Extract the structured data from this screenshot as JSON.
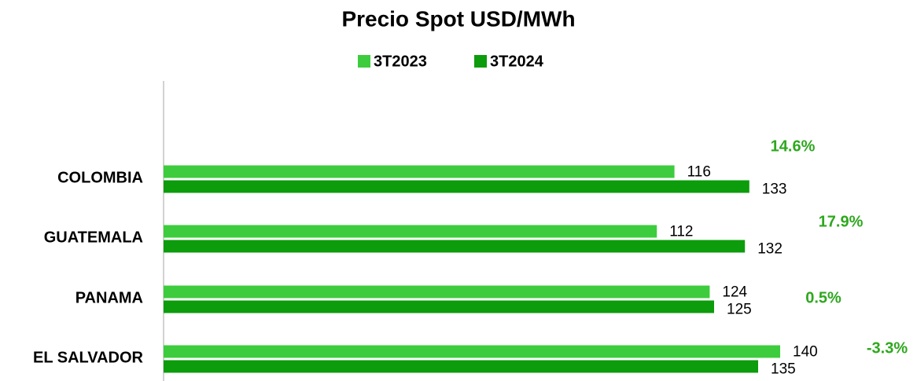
{
  "chart_data": {
    "type": "bar",
    "orientation": "horizontal",
    "title": "Precio Spot USD/MWh",
    "categories": [
      "COLOMBIA",
      "GUATEMALA",
      "PANAMA",
      "EL SALVADOR"
    ],
    "series": [
      {
        "name": "3T2023",
        "color": "#3dcc3d",
        "values": [
          116,
          112,
          124,
          140
        ]
      },
      {
        "name": "3T2024",
        "color": "#0c9c0c",
        "values": [
          133,
          132,
          125,
          135
        ]
      }
    ],
    "annotations": [
      "14.6%",
      "17.9%",
      "0.5%",
      "-3.3%"
    ],
    "annotation_color": "#2ea81e",
    "xlim": [
      0,
      170
    ],
    "legend": "top"
  }
}
